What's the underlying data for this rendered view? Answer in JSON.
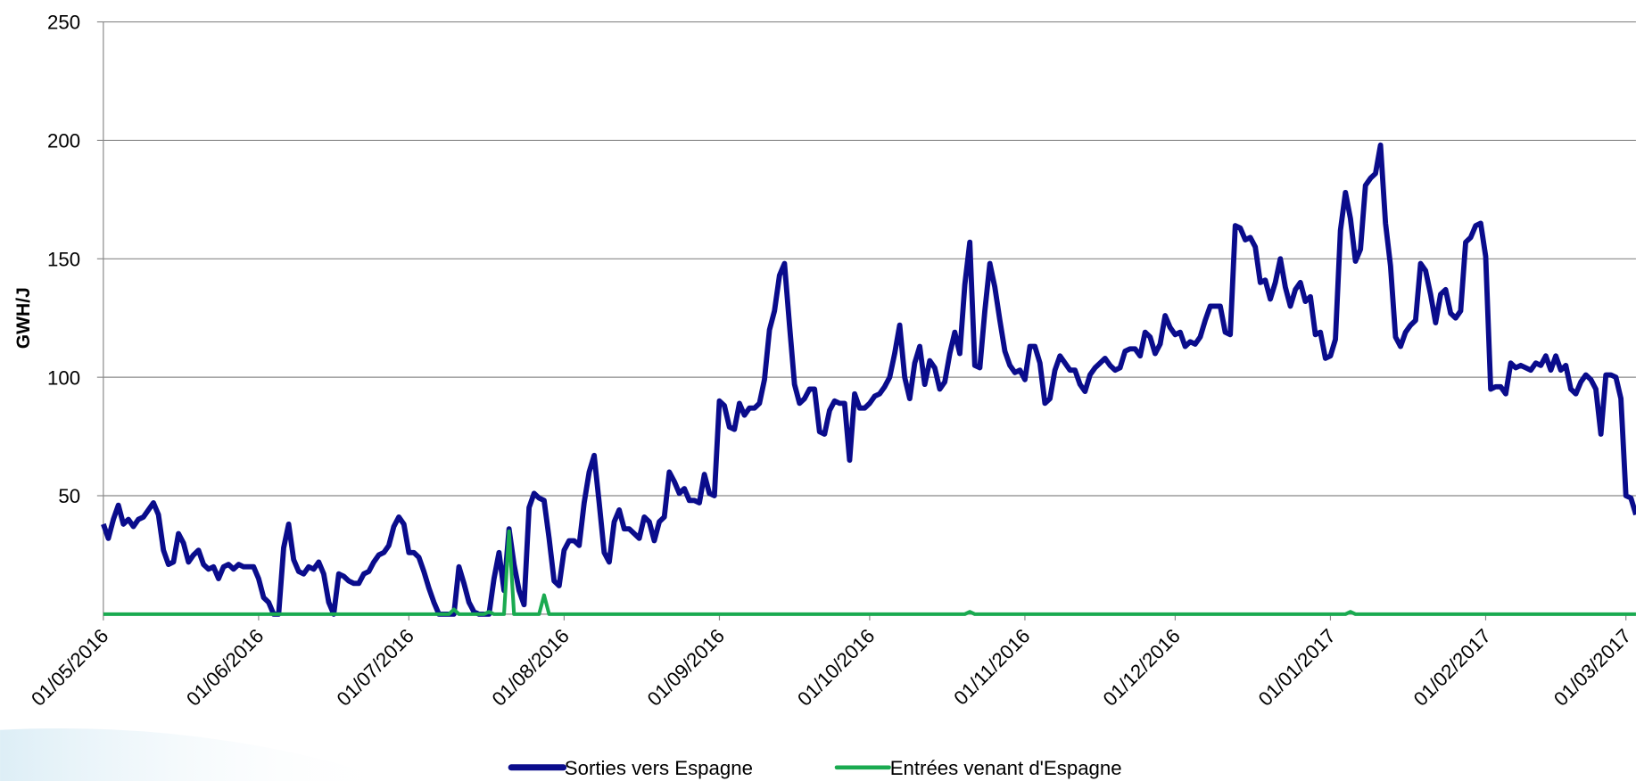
{
  "chart_data": {
    "type": "line",
    "y_label": "GWH/J",
    "ylim": [
      0,
      250
    ],
    "yticks": [
      50,
      100,
      150,
      200,
      250
    ],
    "grid": true,
    "legend": "bottom",
    "xlim": [
      "01/05/2016",
      "03/03/2017"
    ],
    "xticks": [
      "01/05/2016",
      "01/06/2016",
      "01/07/2016",
      "01/08/2016",
      "01/09/2016",
      "01/10/2016",
      "01/11/2016",
      "01/12/2016",
      "01/01/2017",
      "01/02/2017",
      "01/03/2017"
    ],
    "x": [
      "01/05/2016",
      "02/05/2016",
      "03/05/2016",
      "04/05/2016",
      "05/05/2016",
      "06/05/2016",
      "07/05/2016",
      "08/05/2016",
      "09/05/2016",
      "10/05/2016",
      "11/05/2016",
      "12/05/2016",
      "13/05/2016",
      "14/05/2016",
      "15/05/2016",
      "16/05/2016",
      "17/05/2016",
      "18/05/2016",
      "19/05/2016",
      "20/05/2016",
      "21/05/2016",
      "22/05/2016",
      "23/05/2016",
      "24/05/2016",
      "25/05/2016",
      "26/05/2016",
      "27/05/2016",
      "28/05/2016",
      "29/05/2016",
      "30/05/2016",
      "31/05/2016",
      "01/06/2016",
      "02/06/2016",
      "03/06/2016",
      "04/06/2016",
      "05/06/2016",
      "06/06/2016",
      "07/06/2016",
      "08/06/2016",
      "09/06/2016",
      "10/06/2016",
      "11/06/2016",
      "12/06/2016",
      "13/06/2016",
      "14/06/2016",
      "15/06/2016",
      "16/06/2016",
      "17/06/2016",
      "18/06/2016",
      "19/06/2016",
      "20/06/2016",
      "21/06/2016",
      "22/06/2016",
      "23/06/2016",
      "24/06/2016",
      "25/06/2016",
      "26/06/2016",
      "27/06/2016",
      "28/06/2016",
      "29/06/2016",
      "30/06/2016",
      "01/07/2016",
      "02/07/2016",
      "03/07/2016",
      "04/07/2016",
      "05/07/2016",
      "06/07/2016",
      "07/07/2016",
      "08/07/2016",
      "09/07/2016",
      "10/07/2016",
      "11/07/2016",
      "12/07/2016",
      "13/07/2016",
      "14/07/2016",
      "15/07/2016",
      "16/07/2016",
      "17/07/2016",
      "18/07/2016",
      "19/07/2016",
      "20/07/2016",
      "21/07/2016",
      "22/07/2016",
      "23/07/2016",
      "24/07/2016",
      "25/07/2016",
      "26/07/2016",
      "27/07/2016",
      "28/07/2016",
      "29/07/2016",
      "30/07/2016",
      "31/07/2016",
      "01/08/2016",
      "02/08/2016",
      "03/08/2016",
      "04/08/2016",
      "05/08/2016",
      "06/08/2016",
      "07/08/2016",
      "08/08/2016",
      "09/08/2016",
      "10/08/2016",
      "11/08/2016",
      "12/08/2016",
      "13/08/2016",
      "14/08/2016",
      "15/08/2016",
      "16/08/2016",
      "17/08/2016",
      "18/08/2016",
      "19/08/2016",
      "20/08/2016",
      "21/08/2016",
      "22/08/2016",
      "23/08/2016",
      "24/08/2016",
      "25/08/2016",
      "26/08/2016",
      "27/08/2016",
      "28/08/2016",
      "29/08/2016",
      "30/08/2016",
      "31/08/2016",
      "01/09/2016",
      "02/09/2016",
      "03/09/2016",
      "04/09/2016",
      "05/09/2016",
      "06/09/2016",
      "07/09/2016",
      "08/09/2016",
      "09/09/2016",
      "10/09/2016",
      "11/09/2016",
      "12/09/2016",
      "13/09/2016",
      "14/09/2016",
      "15/09/2016",
      "16/09/2016",
      "17/09/2016",
      "18/09/2016",
      "19/09/2016",
      "20/09/2016",
      "21/09/2016",
      "22/09/2016",
      "23/09/2016",
      "24/09/2016",
      "25/09/2016",
      "26/09/2016",
      "27/09/2016",
      "28/09/2016",
      "29/09/2016",
      "30/09/2016",
      "01/10/2016",
      "02/10/2016",
      "03/10/2016",
      "04/10/2016",
      "05/10/2016",
      "06/10/2016",
      "07/10/2016",
      "08/10/2016",
      "09/10/2016",
      "10/10/2016",
      "11/10/2016",
      "12/10/2016",
      "13/10/2016",
      "14/10/2016",
      "15/10/2016",
      "16/10/2016",
      "17/10/2016",
      "18/10/2016",
      "19/10/2016",
      "20/10/2016",
      "21/10/2016",
      "22/10/2016",
      "23/10/2016",
      "24/10/2016",
      "25/10/2016",
      "26/10/2016",
      "27/10/2016",
      "28/10/2016",
      "29/10/2016",
      "30/10/2016",
      "31/10/2016",
      "01/11/2016",
      "02/11/2016",
      "03/11/2016",
      "04/11/2016",
      "05/11/2016",
      "06/11/2016",
      "07/11/2016",
      "08/11/2016",
      "09/11/2016",
      "10/11/2016",
      "11/11/2016",
      "12/11/2016",
      "13/11/2016",
      "14/11/2016",
      "15/11/2016",
      "16/11/2016",
      "17/11/2016",
      "18/11/2016",
      "19/11/2016",
      "20/11/2016",
      "21/11/2016",
      "22/11/2016",
      "23/11/2016",
      "24/11/2016",
      "25/11/2016",
      "26/11/2016",
      "27/11/2016",
      "28/11/2016",
      "29/11/2016",
      "30/11/2016",
      "01/12/2016",
      "02/12/2016",
      "03/12/2016",
      "04/12/2016",
      "05/12/2016",
      "06/12/2016",
      "07/12/2016",
      "08/12/2016",
      "09/12/2016",
      "10/12/2016",
      "11/12/2016",
      "12/12/2016",
      "13/12/2016",
      "14/12/2016",
      "15/12/2016",
      "16/12/2016",
      "17/12/2016",
      "18/12/2016",
      "19/12/2016",
      "20/12/2016",
      "21/12/2016",
      "22/12/2016",
      "23/12/2016",
      "24/12/2016",
      "25/12/2016",
      "26/12/2016",
      "27/12/2016",
      "28/12/2016",
      "29/12/2016",
      "30/12/2016",
      "31/12/2016",
      "01/01/2017",
      "02/01/2017",
      "03/01/2017",
      "04/01/2017",
      "05/01/2017",
      "06/01/2017",
      "07/01/2017",
      "08/01/2017",
      "09/01/2017",
      "10/01/2017",
      "11/01/2017",
      "12/01/2017",
      "13/01/2017",
      "14/01/2017",
      "15/01/2017",
      "16/01/2017",
      "17/01/2017",
      "18/01/2017",
      "19/01/2017",
      "20/01/2017",
      "21/01/2017",
      "22/01/2017",
      "23/01/2017",
      "24/01/2017",
      "25/01/2017",
      "26/01/2017",
      "27/01/2017",
      "28/01/2017",
      "29/01/2017",
      "30/01/2017",
      "31/01/2017",
      "01/02/2017",
      "02/02/2017",
      "03/02/2017",
      "04/02/2017",
      "05/02/2017",
      "06/02/2017",
      "07/02/2017",
      "08/02/2017",
      "09/02/2017",
      "10/02/2017",
      "11/02/2017",
      "12/02/2017",
      "13/02/2017",
      "14/02/2017",
      "15/02/2017",
      "16/02/2017",
      "17/02/2017",
      "18/02/2017",
      "19/02/2017",
      "20/02/2017",
      "21/02/2017",
      "22/02/2017",
      "23/02/2017",
      "24/02/2017",
      "25/02/2017",
      "26/02/2017",
      "27/02/2017",
      "28/02/2017",
      "01/03/2017",
      "02/03/2017",
      "03/03/2017"
    ],
    "series": [
      {
        "name": "Sorties vers Espagne",
        "color": "#0a0c8c",
        "values": [
          38,
          32,
          40,
          46,
          38,
          40,
          37,
          40,
          41,
          44,
          47,
          42,
          27,
          21,
          22,
          34,
          30,
          22,
          25,
          27,
          21,
          19,
          20,
          15,
          20,
          21,
          19,
          21,
          20,
          20,
          20,
          15,
          7,
          5,
          0,
          0,
          28,
          38,
          23,
          18,
          17,
          20,
          19,
          22,
          17,
          5,
          0,
          17,
          16,
          14,
          13,
          13,
          17,
          18,
          22,
          25,
          26,
          29,
          37,
          41,
          38,
          26,
          26,
          24,
          18,
          11,
          5,
          0,
          0,
          0,
          0,
          20,
          13,
          5,
          1,
          0,
          0,
          0,
          15,
          26,
          10,
          36,
          21,
          10,
          4,
          45,
          51,
          49,
          48,
          32,
          14,
          12,
          27,
          31,
          31,
          29,
          47,
          60,
          67,
          47,
          26,
          22,
          39,
          44,
          36,
          36,
          34,
          32,
          41,
          39,
          31,
          39,
          41,
          60,
          56,
          51,
          53,
          48,
          48,
          47,
          59,
          51,
          50,
          90,
          88,
          79,
          78,
          89,
          84,
          87,
          87,
          89,
          99,
          120,
          128,
          143,
          148,
          122,
          97,
          89,
          91,
          95,
          95,
          77,
          76,
          86,
          90,
          89,
          89,
          65,
          93,
          87,
          87,
          89,
          92,
          93,
          96,
          100,
          110,
          122,
          100,
          91,
          106,
          113,
          97,
          107,
          104,
          95,
          98,
          110,
          119,
          110,
          139,
          157,
          105,
          104,
          128,
          148,
          138,
          124,
          111,
          105,
          102,
          103,
          99,
          113,
          113,
          106,
          89,
          91,
          103,
          109,
          106,
          103,
          103,
          97,
          94,
          101,
          104,
          106,
          108,
          105,
          103,
          104,
          111,
          112,
          112,
          109,
          119,
          117,
          110,
          114,
          126,
          121,
          118,
          119,
          113,
          115,
          114,
          117,
          124,
          130,
          130,
          130,
          119,
          118,
          164,
          163,
          158,
          159,
          155,
          140,
          141,
          133,
          140,
          150,
          138,
          130,
          137,
          140,
          132,
          134,
          118,
          119,
          108,
          109,
          116,
          162,
          178,
          167,
          149,
          154,
          181,
          184,
          186,
          198,
          165,
          147,
          117,
          113,
          119,
          122,
          124,
          148,
          145,
          135,
          123,
          135,
          137,
          127,
          125,
          128,
          157,
          159,
          164,
          165,
          151,
          95,
          96,
          96,
          93,
          106,
          104,
          105,
          104,
          103,
          106,
          105,
          109,
          103,
          109,
          103,
          105,
          95,
          93,
          98,
          101,
          99,
          95,
          76,
          101,
          101,
          100,
          91,
          50,
          49,
          42
        ]
      },
      {
        "name": "Entrées venant d'Espagne",
        "color": "#1aaa50",
        "values": [
          0,
          0,
          0,
          0,
          0,
          0,
          0,
          0,
          0,
          0,
          0,
          0,
          0,
          0,
          0,
          0,
          0,
          0,
          0,
          0,
          0,
          0,
          0,
          0,
          0,
          0,
          0,
          0,
          0,
          0,
          0,
          0,
          0,
          0,
          0,
          0,
          0,
          0,
          0,
          0,
          0,
          0,
          0,
          0,
          0,
          0,
          0,
          0,
          0,
          0,
          0,
          0,
          0,
          0,
          0,
          0,
          0,
          0,
          0,
          0,
          0,
          0,
          0,
          0,
          0,
          0,
          0,
          0,
          0,
          0,
          2,
          0,
          0,
          0,
          0,
          0,
          0,
          1,
          0,
          0,
          0,
          35,
          0,
          0,
          0,
          0,
          0,
          0,
          8,
          0,
          0,
          0,
          0,
          0,
          0,
          0,
          0,
          0,
          0,
          0,
          0,
          0,
          0,
          0,
          0,
          0,
          0,
          0,
          0,
          0,
          0,
          0,
          0,
          0,
          0,
          0,
          0,
          0,
          0,
          0,
          0,
          0,
          0,
          0,
          0,
          0,
          0,
          0,
          0,
          0,
          0,
          0,
          0,
          0,
          0,
          0,
          0,
          0,
          0,
          0,
          0,
          0,
          0,
          0,
          0,
          0,
          0,
          0,
          0,
          0,
          0,
          0,
          0,
          0,
          0,
          0,
          0,
          0,
          0,
          0,
          0,
          0,
          0,
          0,
          0,
          0,
          0,
          0,
          0,
          0,
          0,
          0,
          0,
          1,
          0,
          0,
          0,
          0,
          0,
          0,
          0,
          0,
          0,
          0,
          0,
          0,
          0,
          0,
          0,
          0,
          0,
          0,
          0,
          0,
          0,
          0,
          0,
          0,
          0,
          0,
          0,
          0,
          0,
          0,
          0,
          0,
          0,
          0,
          0,
          0,
          0,
          0,
          0,
          0,
          0,
          0,
          0,
          0,
          0,
          0,
          0,
          0,
          0,
          0,
          0,
          0,
          0,
          0,
          0,
          0,
          0,
          0,
          0,
          0,
          0,
          0,
          0,
          0,
          0,
          0,
          0,
          0,
          0,
          0,
          0,
          0,
          0,
          0,
          0,
          1,
          0,
          0,
          0,
          0,
          0,
          0,
          0,
          0,
          0,
          0,
          0,
          0,
          0,
          0,
          0,
          0,
          0,
          0,
          0,
          0,
          0,
          0,
          0,
          0,
          0,
          0,
          0,
          0,
          0,
          0,
          0,
          0,
          0,
          0,
          0,
          0,
          0,
          0,
          0,
          0,
          0,
          0,
          0,
          0,
          0,
          0,
          0,
          0,
          0,
          0,
          0,
          0,
          0,
          0,
          0,
          0,
          0
        ]
      }
    ]
  }
}
